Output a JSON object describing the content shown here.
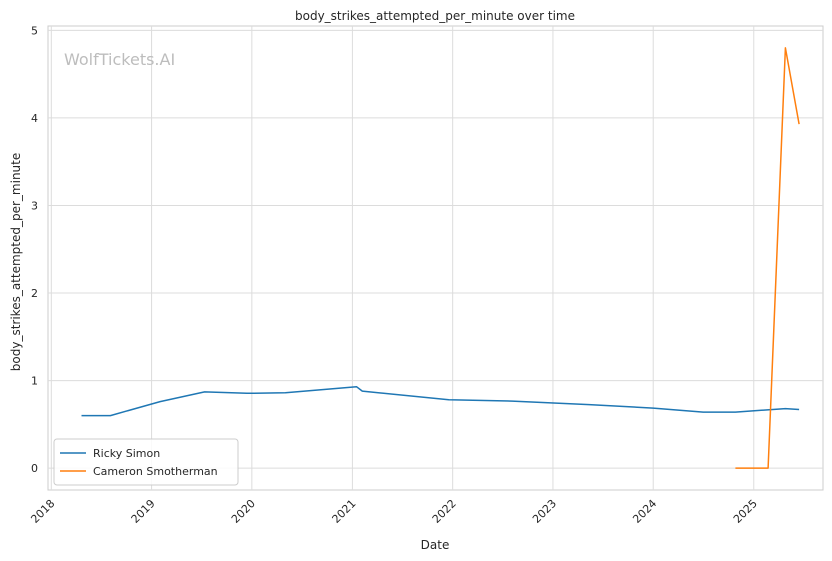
{
  "chart_data": {
    "type": "line",
    "title": "body_strikes_attempted_per_minute over time",
    "xlabel": "Date",
    "ylabel": "body_strikes_attempted_per_minute",
    "watermark": "WolfTickets.AI",
    "x_ticks": [
      "2018",
      "2019",
      "2020",
      "2021",
      "2022",
      "2023",
      "2024",
      "2025"
    ],
    "y_ticks": [
      "0",
      "1",
      "2",
      "3",
      "4",
      "5"
    ],
    "xlim": [
      "2017-12-20",
      "2025-09-10"
    ],
    "ylim": [
      -0.25,
      5.05
    ],
    "grid": true,
    "legend_position": "lower-left",
    "series": [
      {
        "name": "Ricky Simon",
        "color": "#1f77b4",
        "x": [
          "2018-04-21",
          "2018-08-04",
          "2019-02-01",
          "2019-07-13",
          "2019-12-14",
          "2020-05-02",
          "2021-01-16",
          "2021-02-06",
          "2021-12-18",
          "2022-08-06",
          "2023-05-13",
          "2024-01-01",
          "2024-07-01",
          "2024-10-26",
          "2025-04-26",
          "2025-06-15"
        ],
        "values": [
          0.6,
          0.6,
          0.76,
          0.87,
          0.855,
          0.86,
          0.93,
          0.88,
          0.78,
          0.765,
          0.725,
          0.685,
          0.64,
          0.64,
          0.68,
          0.67
        ]
      },
      {
        "name": "Cameron Smotherman",
        "color": "#ff7f0e",
        "x": [
          "2024-10-26",
          "2025-02-22",
          "2025-04-26",
          "2025-06-15"
        ],
        "values": [
          0.0,
          0.0,
          4.8,
          3.93
        ]
      }
    ]
  }
}
